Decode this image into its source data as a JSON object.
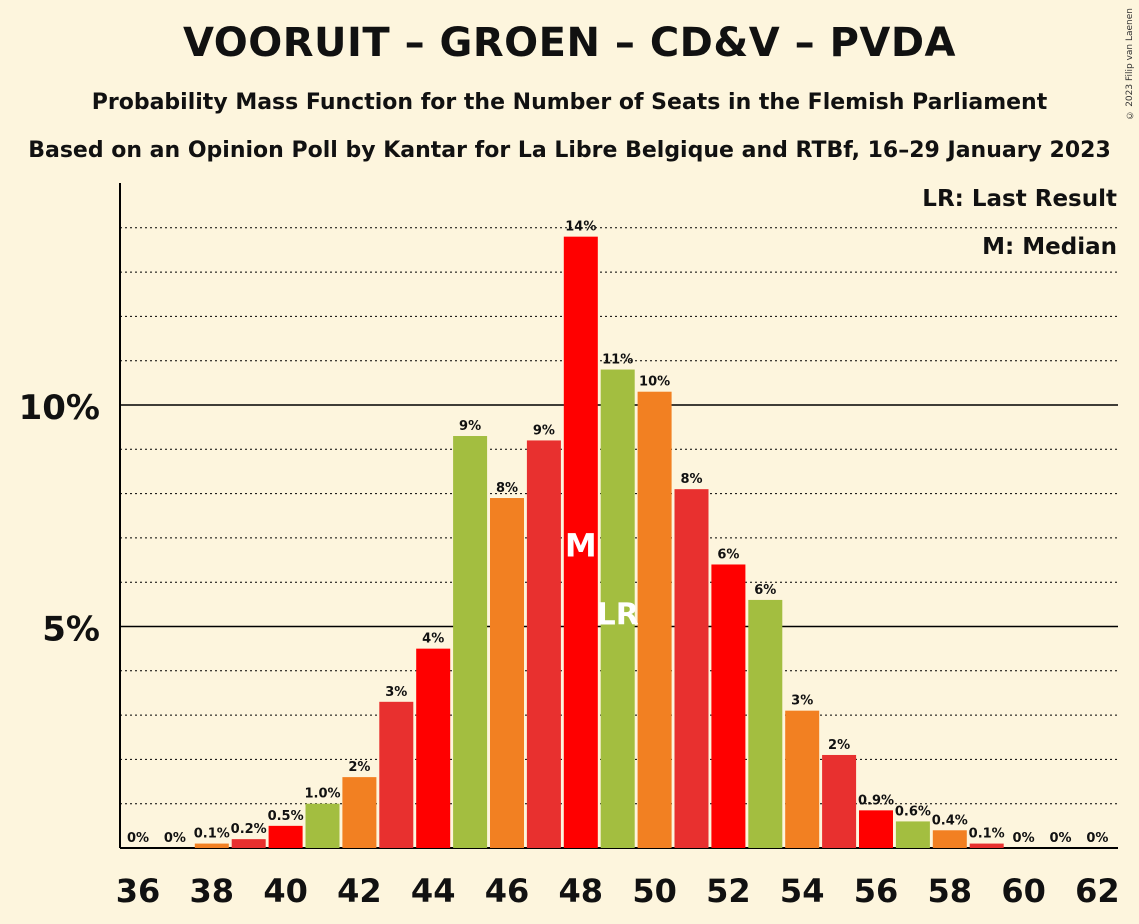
{
  "title": "VOORUIT – GROEN – CD&V – PVDA",
  "subtitle": "Probability Mass Function for the Number of Seats in the Flemish Parliament",
  "subtitle2": "Based on an Opinion Poll by Kantar for La Libre Belgique and RTBf, 16–29 January 2023",
  "copyright": "© 2023 Filip van Laenen",
  "legend": {
    "last_result": "LR: Last Result",
    "median": "M: Median"
  },
  "colors": {
    "red": "#FF0000",
    "dark_red": "#E8302F",
    "green": "#A3BE40",
    "orange": "#F28022",
    "background": "#FDF5DD"
  },
  "chart_data": {
    "type": "bar",
    "x": [
      36,
      37,
      38,
      39,
      40,
      41,
      42,
      43,
      44,
      45,
      46,
      47,
      48,
      49,
      50,
      51,
      52,
      53,
      54,
      55,
      56,
      57,
      58,
      59,
      60,
      61,
      62
    ],
    "values": [
      0,
      0,
      0.1,
      0.2,
      0.5,
      1.0,
      1.6,
      3.3,
      4.5,
      9.3,
      7.9,
      9.2,
      13.8,
      10.8,
      10.3,
      8.1,
      6.4,
      5.6,
      3.1,
      2.1,
      0.85,
      0.6,
      0.4,
      0.1,
      0,
      0,
      0
    ],
    "labels": [
      "0%",
      "0%",
      "0.1%",
      "0.2%",
      "0.5%",
      "1.0%",
      "2%",
      "3%",
      "4%",
      "9%",
      "8%",
      "9%",
      "14%",
      "11%",
      "10%",
      "8%",
      "6%",
      "6%",
      "3%",
      "2%",
      "0.9%",
      "0.6%",
      "0.4%",
      "0.1%",
      "0%",
      "0%",
      "0%"
    ],
    "bar_colors": [
      "red",
      "dark_red",
      "orange",
      "dark_red",
      "red",
      "green",
      "orange",
      "dark_red",
      "red",
      "green",
      "orange",
      "dark_red",
      "red",
      "green",
      "orange",
      "dark_red",
      "red",
      "green",
      "orange",
      "dark_red",
      "red",
      "green",
      "orange",
      "dark_red",
      "red",
      "green",
      "orange"
    ],
    "x_ticks": [
      "36",
      "38",
      "40",
      "42",
      "44",
      "46",
      "48",
      "50",
      "52",
      "54",
      "56",
      "58",
      "60",
      "62"
    ],
    "y_ticks": [
      "5%",
      "10%"
    ],
    "ylim": [
      0,
      15
    ],
    "median": 48,
    "median_label": "M",
    "last_result": 49,
    "last_result_label": "LR"
  }
}
